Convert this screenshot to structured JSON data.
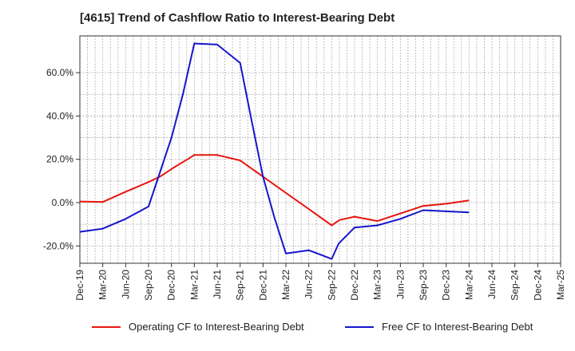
{
  "chart_data": {
    "type": "line",
    "title": "[4615]  Trend of Cashflow Ratio to Interest-Bearing Debt",
    "xlabel": "",
    "ylabel": "",
    "categories": [
      "Dec-19",
      "Mar-20",
      "Jun-20",
      "Sep-20",
      "Dec-20",
      "Mar-21",
      "Jun-21",
      "Sep-21",
      "Dec-21",
      "Mar-22",
      "Jun-22",
      "Sep-22",
      "Dec-22",
      "Mar-23",
      "Jun-23",
      "Sep-23",
      "Dec-23",
      "Mar-24",
      "Jun-24",
      "Sep-24",
      "Dec-24",
      "Mar-25"
    ],
    "ylim": [
      -28,
      77
    ],
    "yticks": [
      -20,
      0,
      20,
      40,
      60
    ],
    "ytick_labels": [
      "-20.0%",
      "0.0%",
      "20.0%",
      "40.0%",
      "60.0%"
    ],
    "grid": true,
    "legend_position": "bottom",
    "series": [
      {
        "name": "Operating CF to Interest-Bearing Debt",
        "color": "#e8150f",
        "points": [
          [
            0,
            0.5
          ],
          [
            1,
            0.3
          ],
          [
            2,
            5.0
          ],
          [
            3,
            9.5
          ],
          [
            3.5,
            12.0
          ],
          [
            4,
            15.5
          ],
          [
            4.7,
            20.0
          ],
          [
            5,
            22.0
          ],
          [
            6,
            22.0
          ],
          [
            7,
            19.5
          ],
          [
            8,
            12.0
          ],
          [
            9,
            4.5
          ],
          [
            10,
            -3.0
          ],
          [
            11,
            -10.5
          ],
          [
            11.35,
            -8.0
          ],
          [
            12,
            -6.5
          ],
          [
            13,
            -8.5
          ],
          [
            14,
            -5.0
          ],
          [
            15,
            -1.5
          ],
          [
            16,
            -0.5
          ],
          [
            17,
            1.0
          ]
        ]
      },
      {
        "name": "Free CF to Interest-Bearing Debt",
        "color": "#1515cc",
        "points": [
          [
            0,
            -13.5
          ],
          [
            1,
            -12.0
          ],
          [
            2,
            -7.5
          ],
          [
            3,
            -1.8
          ],
          [
            3.5,
            14.0
          ],
          [
            4,
            30.0
          ],
          [
            4.5,
            50.0
          ],
          [
            5,
            73.5
          ],
          [
            6,
            73.0
          ],
          [
            7,
            64.5
          ],
          [
            7.5,
            38.0
          ],
          [
            8,
            12.0
          ],
          [
            8.5,
            -7.0
          ],
          [
            9,
            -23.5
          ],
          [
            10,
            -22.0
          ],
          [
            11,
            -26.0
          ],
          [
            11.3,
            -19.0
          ],
          [
            12,
            -11.5
          ],
          [
            13,
            -10.5
          ],
          [
            14,
            -7.5
          ],
          [
            15,
            -3.5
          ],
          [
            16,
            -4.0
          ],
          [
            17,
            -4.5
          ]
        ]
      }
    ]
  }
}
